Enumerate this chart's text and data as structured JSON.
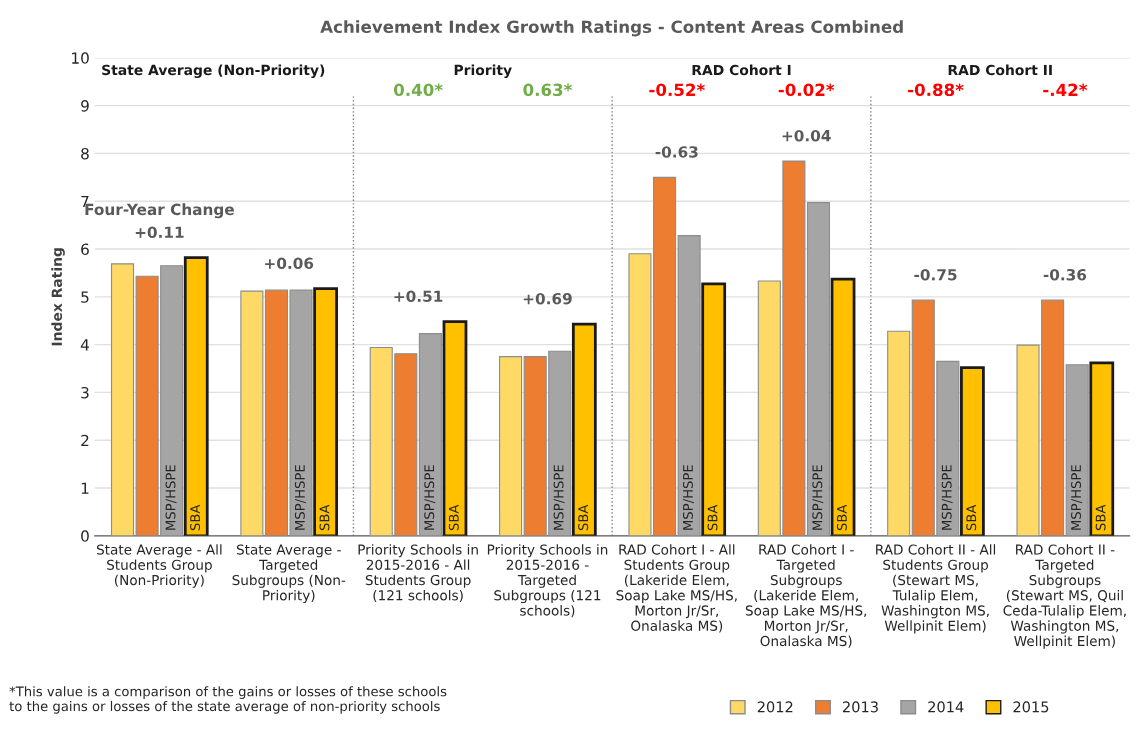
{
  "chart_data": {
    "type": "bar",
    "title": "Achievement Index Growth Ratings - Content Areas Combined",
    "ylabel": "Index Rating",
    "categories": [
      "State Average - All\nStudents Group\n(Non-Priority)",
      "State Average -\nTargeted\nSubgroups (Non-\nPriority)",
      "Priority Schools in\n2015-2016 - All\nStudents Group\n(121 schools)",
      "Priority Schools in\n2015-2016 -\nTargeted\nSubgroups (121\nschools)",
      "RAD Cohort I - All\nStudents Group\n(Lakeride Elem,\nSoap Lake MS/HS,\nMorton Jr/Sr,\nOnalaska MS)",
      "RAD Cohort I -\nTargeted\nSubgroups\n(Lakeride Elem,\nSoap Lake MS/HS,\nMorton Jr/Sr,\nOnalaska MS)",
      "RAD Cohort II - All\nStudents Group\n(Stewart MS,\nTulalip Elem,\nWashington MS,\nWellpinit Elem)",
      "RAD Cohort II -\nTargeted\nSubgroups\n(Stewart MS, Quil\nCeda-Tulalip Elem,\nWashington MS,\nWellpinit Elem)"
    ],
    "series": [
      {
        "name": "2012",
        "color": "#ffd966",
        "values": [
          5.69,
          5.12,
          3.94,
          3.75,
          5.9,
          5.33,
          4.28,
          3.99
        ]
      },
      {
        "name": "2013",
        "color": "#ed7d31",
        "values": [
          5.43,
          5.14,
          3.81,
          3.75,
          7.5,
          7.84,
          4.93,
          4.93
        ]
      },
      {
        "name": "2014",
        "color": "#a5a5a5",
        "values": [
          5.65,
          5.14,
          4.23,
          3.86,
          6.28,
          6.97,
          3.65,
          3.58
        ]
      },
      {
        "name": "2015",
        "color": "#ffc000",
        "values": [
          5.82,
          5.17,
          4.48,
          4.43,
          5.27,
          5.37,
          3.52,
          3.62
        ]
      }
    ],
    "ylim": [
      0,
      10
    ],
    "yticks": [
      0,
      1,
      2,
      3,
      4,
      5,
      6,
      7,
      8,
      9,
      10
    ],
    "grid": "y",
    "legend": "bottom right",
    "annotations": [
      "State Average (Non-Priority)",
      "Priority",
      "RAD Cohort I",
      "RAD Cohort II",
      "0.40*",
      "0.63*",
      "-0.52*",
      "-0.02*",
      "-0.88*",
      "-.42*",
      "Four-Year Change",
      "+0.11",
      "+0.06",
      "+0.51",
      "+0.69",
      "-0.63",
      "+0.04",
      "-0.75",
      "-0.36",
      "MSP/HSPE",
      "SBA",
      "*This value is a comparison of the gains or losses of these schools\nto the gains or losses of the state average of non-priority schools"
    ]
  }
}
